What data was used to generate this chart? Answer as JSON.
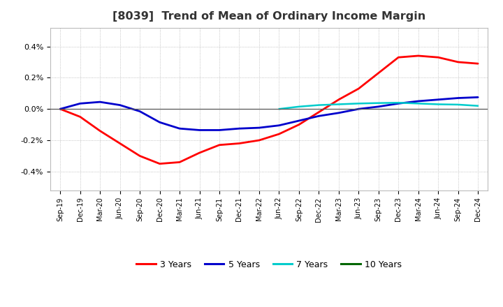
{
  "title": "[8039]  Trend of Mean of Ordinary Income Margin",
  "title_fontsize": 11.5,
  "title_fontweight": "bold",
  "background_color": "#ffffff",
  "plot_background_color": "#ffffff",
  "grid_color": "#aaaaaa",
  "x_tick_labels": [
    "Sep-19",
    "Dec-19",
    "Mar-20",
    "Jun-20",
    "Sep-20",
    "Dec-20",
    "Mar-21",
    "Jun-21",
    "Sep-21",
    "Dec-21",
    "Mar-22",
    "Jun-22",
    "Sep-22",
    "Dec-22",
    "Mar-23",
    "Jun-23",
    "Sep-23",
    "Dec-23",
    "Mar-24",
    "Jun-24",
    "Sep-24",
    "Dec-24"
  ],
  "ylim": [
    -0.0052,
    0.0052
  ],
  "yticks": [
    -0.004,
    -0.002,
    0.0,
    0.002,
    0.004
  ],
  "ytick_labels": [
    "-0.4%",
    "-0.2%",
    "0.0%",
    "0.2%",
    "0.4%"
  ],
  "series": {
    "3 Years": {
      "color": "#ff0000",
      "linewidth": 2.0,
      "values": [
        0.0,
        -0.0005,
        -0.0014,
        -0.0022,
        -0.003,
        -0.0035,
        -0.0034,
        -0.0028,
        -0.0023,
        -0.0022,
        -0.002,
        -0.0016,
        -0.001,
        -0.0002,
        0.0006,
        0.0013,
        0.0023,
        0.0033,
        0.0034,
        0.0033,
        0.003,
        0.0029
      ]
    },
    "5 Years": {
      "color": "#0000cc",
      "linewidth": 2.0,
      "values": [
        0.0,
        0.00035,
        0.00045,
        0.00025,
        -0.00015,
        -0.00085,
        -0.00125,
        -0.00135,
        -0.00135,
        -0.00125,
        -0.0012,
        -0.00105,
        -0.00075,
        -0.00045,
        -0.00025,
        0.0,
        0.00015,
        0.00035,
        0.0005,
        0.0006,
        0.0007,
        0.00075
      ]
    },
    "7 Years": {
      "color": "#00cccc",
      "linewidth": 1.8,
      "values": [
        null,
        null,
        null,
        null,
        null,
        null,
        null,
        null,
        null,
        null,
        null,
        0.0,
        0.00015,
        0.00025,
        0.0003,
        0.00035,
        0.00038,
        0.0004,
        0.00035,
        0.0003,
        0.00028,
        0.0002
      ]
    },
    "10 Years": {
      "color": "#006600",
      "linewidth": 1.8,
      "values": [
        null,
        null,
        null,
        null,
        null,
        null,
        null,
        null,
        null,
        null,
        null,
        null,
        null,
        null,
        null,
        null,
        null,
        null,
        null,
        null,
        null,
        null
      ]
    }
  },
  "legend_labels": [
    "3 Years",
    "5 Years",
    "7 Years",
    "10 Years"
  ],
  "legend_colors": [
    "#ff0000",
    "#0000cc",
    "#00cccc",
    "#006600"
  ]
}
